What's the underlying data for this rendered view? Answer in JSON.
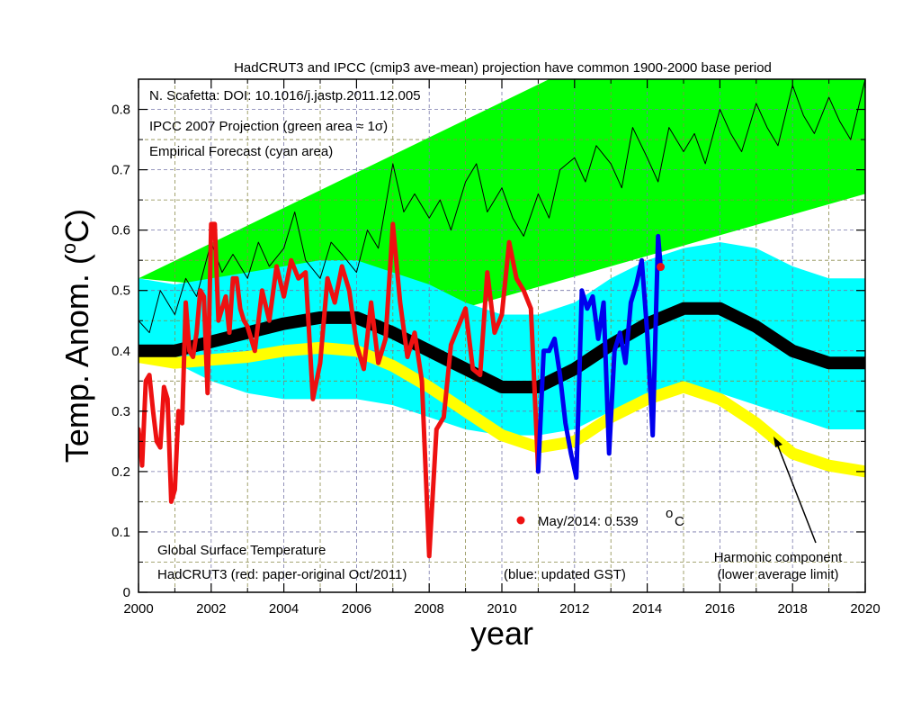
{
  "chart_data": {
    "type": "line",
    "title": "HadCRUT3 and IPCC (cmip3 ave-mean) projection have common 1900-2000 base period",
    "xlabel": "year",
    "ylabel": "Temp. Anom. (oC)",
    "ylabel_parts": {
      "main": "Temp. Anom. (",
      "sup": "o",
      "tail": "C)"
    },
    "xlim": [
      2000,
      2020
    ],
    "ylim": [
      0,
      0.85
    ],
    "xticks": [
      2000,
      2002,
      2004,
      2006,
      2008,
      2010,
      2012,
      2014,
      2016,
      2018,
      2020
    ],
    "yticks": [
      0,
      0.1,
      0.2,
      0.3,
      0.4,
      0.5,
      0.6,
      0.7,
      0.8
    ],
    "ytick_labels": [
      "0",
      "0.1",
      "0.2",
      "0.3",
      "0.4",
      "0.5",
      "0.6",
      "0.7",
      "0.8"
    ],
    "grid": true,
    "annotations": {
      "doi": "N. Scafetta: DOI: 10.1016/j.jastp.2011.12.005",
      "ipcc": "IPCC 2007 Projection (green area ≈ 1σ)",
      "empirical": "Empirical Forecast (cyan area)",
      "gst_title": "Global Surface Temperature",
      "hadcrut": "HadCRUT3 (red: paper-original Oct/2011)",
      "blue": "(blue: updated GST)",
      "marker_label": "May/2014: 0.539",
      "marker_unit": "C",
      "marker_sup": "o",
      "harmonic_1": "Harmonic component",
      "harmonic_2": "(lower average limit)"
    },
    "marker": {
      "x": 2014.37,
      "y": 0.539
    },
    "series": [
      {
        "kind": "band",
        "color": "#00ff00",
        "x": [
          2000,
          2020
        ],
        "lower": [
          0.52,
          0.66
        ],
        "upper": [
          0.52,
          0.85
        ],
        "lower_start": 0.52,
        "upper_points": [
          [
            2000,
            0.52
          ],
          [
            2011.3,
            0.85
          ],
          [
            2020,
            0.85
          ]
        ],
        "lower_points": [
          [
            2000,
            0.52
          ],
          [
            2008.9,
            0.47
          ],
          [
            2020,
            0.66
          ]
        ]
      },
      {
        "kind": "band",
        "color": "#00ffff",
        "x": [
          2000,
          2001,
          2002,
          2003,
          2004,
          2005,
          2006,
          2007,
          2008,
          2009,
          2010,
          2011,
          2012,
          2013,
          2014,
          2015,
          2016,
          2017,
          2018,
          2019,
          2020
        ],
        "upper": [
          0.52,
          0.51,
          0.52,
          0.53,
          0.54,
          0.55,
          0.55,
          0.53,
          0.51,
          0.48,
          0.46,
          0.46,
          0.48,
          0.52,
          0.55,
          0.57,
          0.58,
          0.57,
          0.54,
          0.52,
          0.52
        ],
        "lower": [
          0.4,
          0.38,
          0.35,
          0.33,
          0.32,
          0.32,
          0.32,
          0.31,
          0.29,
          0.27,
          0.26,
          0.26,
          0.27,
          0.3,
          0.32,
          0.33,
          0.33,
          0.31,
          0.29,
          0.27,
          0.27
        ]
      },
      {
        "kind": "line",
        "color": "#ffff00",
        "width": 13,
        "x": [
          2000,
          2001,
          2002,
          2003,
          2004,
          2005,
          2006,
          2007,
          2008,
          2009,
          2010,
          2011,
          2012,
          2013,
          2014,
          2015,
          2016,
          2017,
          2018,
          2019,
          2020
        ],
        "y": [
          0.39,
          0.38,
          0.385,
          0.39,
          0.4,
          0.405,
          0.4,
          0.375,
          0.34,
          0.3,
          0.26,
          0.24,
          0.25,
          0.29,
          0.32,
          0.34,
          0.32,
          0.28,
          0.23,
          0.21,
          0.2
        ]
      },
      {
        "kind": "line",
        "color": "#000000",
        "width": 14,
        "x": [
          2000,
          2001,
          2002,
          2003,
          2004,
          2005,
          2006,
          2007,
          2008,
          2009,
          2010,
          2011,
          2012,
          2013,
          2014,
          2015,
          2016,
          2017,
          2018,
          2019,
          2020
        ],
        "y": [
          0.4,
          0.4,
          0.415,
          0.43,
          0.445,
          0.455,
          0.455,
          0.43,
          0.4,
          0.37,
          0.34,
          0.34,
          0.37,
          0.41,
          0.445,
          0.47,
          0.47,
          0.44,
          0.4,
          0.38,
          0.38
        ]
      },
      {
        "kind": "line",
        "name": "IPCC projection",
        "color": "#000000",
        "width": 1,
        "x": [
          2000.0,
          2000.3,
          2000.6,
          2001.0,
          2001.3,
          2001.6,
          2002.0,
          2002.3,
          2002.6,
          2003.0,
          2003.3,
          2003.6,
          2004.0,
          2004.3,
          2004.6,
          2005.0,
          2005.3,
          2005.6,
          2006.0,
          2006.3,
          2006.6,
          2007.0,
          2007.3,
          2007.6,
          2008.0,
          2008.3,
          2008.6,
          2009.0,
          2009.3,
          2009.6,
          2010.0,
          2010.3,
          2010.6,
          2011.0,
          2011.3,
          2011.6,
          2012.0,
          2012.3,
          2012.6,
          2013.0,
          2013.3,
          2013.6,
          2014.0,
          2014.3,
          2014.6,
          2015.0,
          2015.3,
          2015.6,
          2016.0,
          2016.3,
          2016.6,
          2017.0,
          2017.3,
          2017.6,
          2018.0,
          2018.3,
          2018.6,
          2019.0,
          2019.3,
          2019.6,
          2020.0
        ],
        "y": [
          0.45,
          0.43,
          0.5,
          0.46,
          0.52,
          0.49,
          0.58,
          0.53,
          0.56,
          0.52,
          0.58,
          0.54,
          0.57,
          0.63,
          0.55,
          0.52,
          0.58,
          0.56,
          0.53,
          0.6,
          0.57,
          0.71,
          0.63,
          0.66,
          0.62,
          0.65,
          0.6,
          0.68,
          0.71,
          0.63,
          0.67,
          0.62,
          0.59,
          0.66,
          0.62,
          0.7,
          0.72,
          0.68,
          0.74,
          0.71,
          0.67,
          0.77,
          0.72,
          0.68,
          0.77,
          0.73,
          0.76,
          0.71,
          0.8,
          0.76,
          0.73,
          0.81,
          0.77,
          0.74,
          0.84,
          0.79,
          0.76,
          0.82,
          0.78,
          0.75,
          0.85
        ]
      },
      {
        "kind": "line",
        "name": "HadCRUT3 (paper-original Oct/2011)",
        "color": "#ee1111",
        "width": 5,
        "x": [
          2000.0,
          2000.1,
          2000.2,
          2000.3,
          2000.4,
          2000.5,
          2000.6,
          2000.7,
          2000.8,
          2000.9,
          2001.0,
          2001.1,
          2001.2,
          2001.3,
          2001.4,
          2001.5,
          2001.6,
          2001.7,
          2001.8,
          2001.9,
          2002.0,
          2002.1,
          2002.2,
          2002.3,
          2002.4,
          2002.5,
          2002.6,
          2002.7,
          2002.8,
          2002.9,
          2003.0,
          2003.2,
          2003.4,
          2003.6,
          2003.8,
          2004.0,
          2004.2,
          2004.4,
          2004.6,
          2004.8,
          2005.0,
          2005.2,
          2005.4,
          2005.6,
          2005.8,
          2006.0,
          2006.2,
          2006.4,
          2006.6,
          2006.8,
          2007.0,
          2007.2,
          2007.4,
          2007.6,
          2007.8,
          2008.0,
          2008.2,
          2008.4,
          2008.6,
          2008.8,
          2009.0,
          2009.2,
          2009.4,
          2009.6,
          2009.8,
          2010.0,
          2010.2,
          2010.4,
          2010.6,
          2010.8,
          2011.0
        ],
        "y": [
          0.27,
          0.21,
          0.35,
          0.36,
          0.3,
          0.25,
          0.24,
          0.34,
          0.32,
          0.15,
          0.17,
          0.3,
          0.28,
          0.48,
          0.4,
          0.39,
          0.43,
          0.5,
          0.49,
          0.33,
          0.61,
          0.61,
          0.45,
          0.47,
          0.49,
          0.43,
          0.52,
          0.52,
          0.47,
          0.45,
          0.44,
          0.4,
          0.5,
          0.45,
          0.54,
          0.49,
          0.55,
          0.52,
          0.53,
          0.32,
          0.38,
          0.52,
          0.48,
          0.54,
          0.5,
          0.41,
          0.37,
          0.48,
          0.38,
          0.42,
          0.61,
          0.48,
          0.39,
          0.43,
          0.35,
          0.06,
          0.27,
          0.29,
          0.41,
          0.44,
          0.47,
          0.37,
          0.36,
          0.53,
          0.43,
          0.46,
          0.58,
          0.52,
          0.5,
          0.47,
          0.2
        ]
      },
      {
        "kind": "line",
        "name": "updated GST",
        "color": "#0000ee",
        "width": 5,
        "x": [
          2011.0,
          2011.15,
          2011.3,
          2011.45,
          2011.6,
          2011.75,
          2011.9,
          2012.05,
          2012.2,
          2012.35,
          2012.5,
          2012.65,
          2012.8,
          2012.95,
          2013.1,
          2013.25,
          2013.4,
          2013.55,
          2013.7,
          2013.85,
          2014.0,
          2014.15,
          2014.3,
          2014.37
        ],
        "y": [
          0.2,
          0.4,
          0.4,
          0.42,
          0.36,
          0.28,
          0.23,
          0.19,
          0.5,
          0.47,
          0.49,
          0.42,
          0.48,
          0.23,
          0.4,
          0.43,
          0.38,
          0.48,
          0.51,
          0.55,
          0.43,
          0.26,
          0.59,
          0.54
        ]
      }
    ]
  }
}
